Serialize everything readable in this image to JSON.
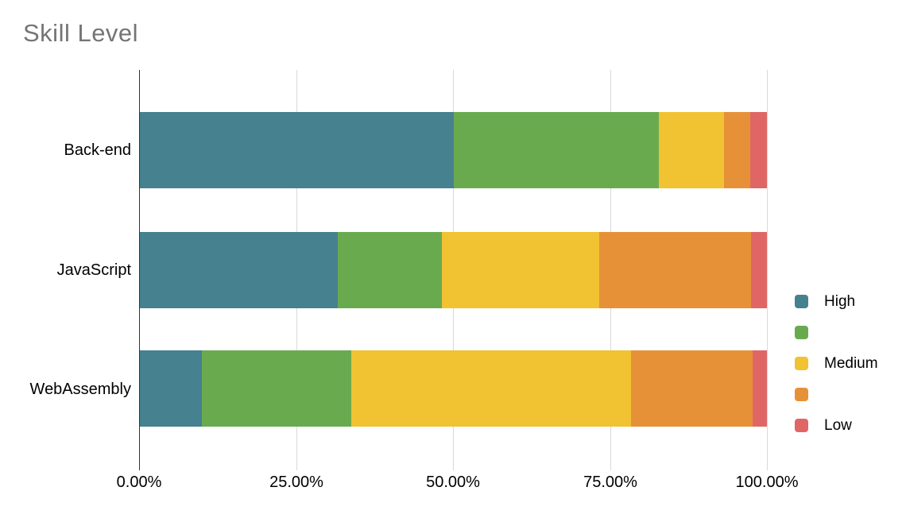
{
  "title": "Skill Level",
  "colors": {
    "title_text": "#757575",
    "axis_text": "#000000",
    "gridline": "#d9d9d9",
    "axis_line": "#333333",
    "background": "#ffffff"
  },
  "chart_data": {
    "type": "bar",
    "orientation": "horizontal",
    "stacked": true,
    "units": "percent",
    "title": "Skill Level",
    "xlabel": "",
    "ylabel": "",
    "grid": true,
    "categories": [
      "Back-end",
      "JavaScript",
      "WebAssembly"
    ],
    "series": [
      {
        "name": "High",
        "color": "#45818e",
        "values": [
          50.0,
          31.6,
          9.9
        ]
      },
      {
        "name": "",
        "color": "#6aaa4f",
        "values": [
          32.7,
          16.6,
          23.8
        ]
      },
      {
        "name": "Medium",
        "color": "#f1c232",
        "values": [
          10.5,
          25.1,
          44.6
        ]
      },
      {
        "name": "",
        "color": "#e69138",
        "values": [
          4.2,
          24.2,
          19.4
        ]
      },
      {
        "name": "Low",
        "color": "#e06666",
        "values": [
          2.6,
          2.5,
          2.3
        ]
      }
    ],
    "x_axis": {
      "min": 0,
      "max": 100,
      "tick_labels": [
        "0.00%",
        "25.00%",
        "50.00%",
        "75.00%",
        "100.00%"
      ]
    },
    "legend": {
      "position": "right",
      "labels": [
        "High",
        "",
        "Medium",
        "",
        "Low"
      ]
    }
  }
}
